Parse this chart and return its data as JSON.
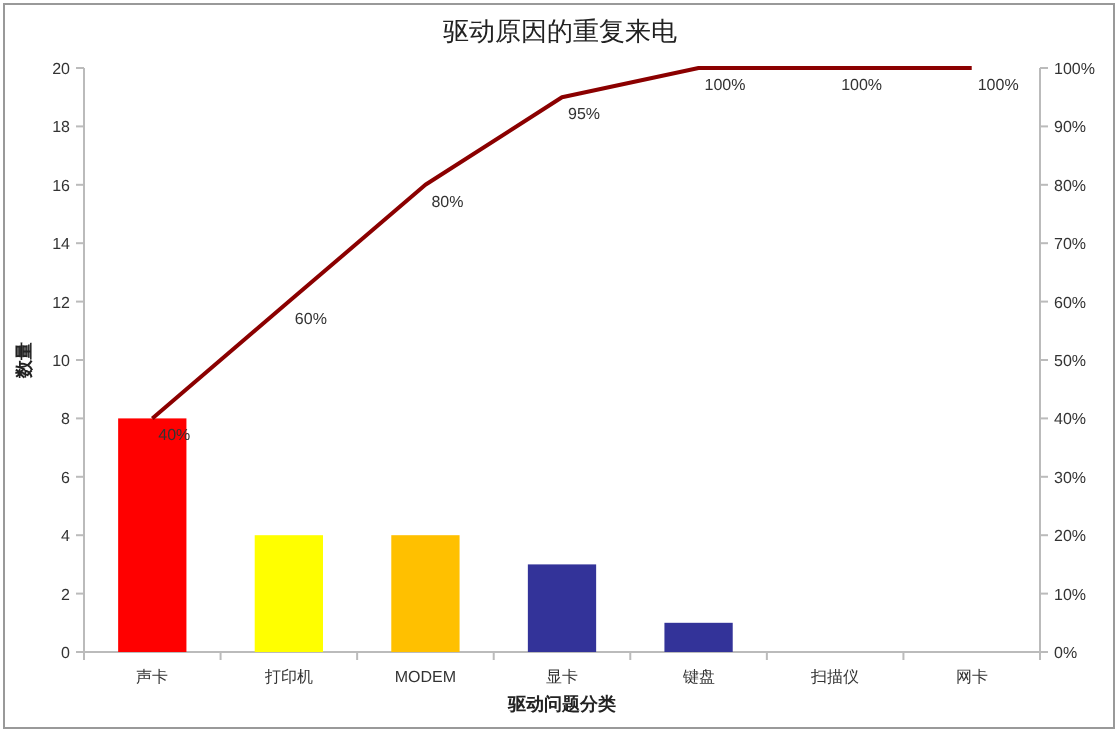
{
  "chart_data": {
    "type": "bar",
    "title": "驱动原因的重复来电",
    "xlabel": "驱动问题分类",
    "ylabel": "数量",
    "categories": [
      "声卡",
      "打印机",
      "MODEM",
      "显卡",
      "键盘",
      "扫描仪",
      "网卡"
    ],
    "series": [
      {
        "colors": [
          "#ff0000",
          "#ffff00",
          "#ffc000",
          "#333399",
          "#333399",
          "#333399",
          "#333399"
        ],
        "values": [
          8,
          4,
          4,
          3,
          1,
          0,
          0
        ]
      },
      {
        "type": "line",
        "axis": "y2",
        "color": "#8b0000",
        "values": [
          40,
          60,
          80,
          95,
          100,
          100,
          100
        ],
        "value_labels": [
          "40%",
          "60%",
          "80%",
          "95%",
          "100%",
          "100%",
          "100%"
        ]
      }
    ],
    "ylim": [
      0,
      20
    ],
    "yticks": [
      0,
      2,
      4,
      6,
      8,
      10,
      12,
      14,
      16,
      18,
      20
    ],
    "y2lim": [
      0,
      100
    ],
    "y2ticks": [
      {
        "value": 0,
        "label": "0%"
      },
      {
        "value": 10,
        "label": "10%"
      },
      {
        "value": 20,
        "label": "20%"
      },
      {
        "value": 30,
        "label": "30%"
      },
      {
        "value": 40,
        "label": "40%"
      },
      {
        "value": 50,
        "label": "50%"
      },
      {
        "value": 60,
        "label": "60%"
      },
      {
        "value": 70,
        "label": "70%"
      },
      {
        "value": 80,
        "label": "80%"
      },
      {
        "value": 90,
        "label": "90%"
      },
      {
        "value": 100,
        "label": "100%"
      }
    ]
  }
}
